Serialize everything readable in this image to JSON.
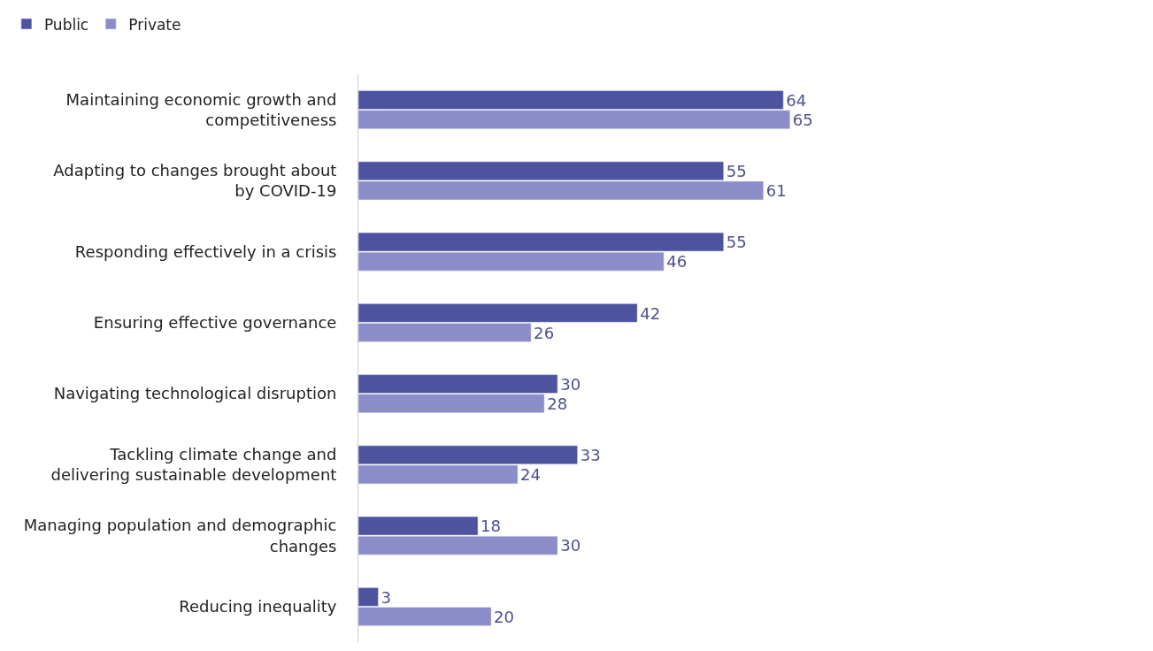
{
  "chart_data": {
    "type": "bar",
    "orientation": "horizontal",
    "categories": [
      "Maintaining economic growth and competitiveness",
      "Adapting to changes brought about by COVID-19",
      "Responding effectively in a crisis",
      "Ensuring effective governance",
      "Navigating technological disruption",
      "Tackling climate change and delivering sustainable development",
      "Managing population and demographic changes",
      "Reducing inequality"
    ],
    "series": [
      {
        "name": "Public",
        "color": "#4e53a0",
        "values": [
          64,
          55,
          55,
          42,
          30,
          33,
          18,
          3
        ]
      },
      {
        "name": "Private",
        "color": "#8b8cc8",
        "values": [
          65,
          61,
          46,
          26,
          28,
          24,
          30,
          20
        ]
      }
    ],
    "data_labels": true,
    "legend": "top left"
  }
}
